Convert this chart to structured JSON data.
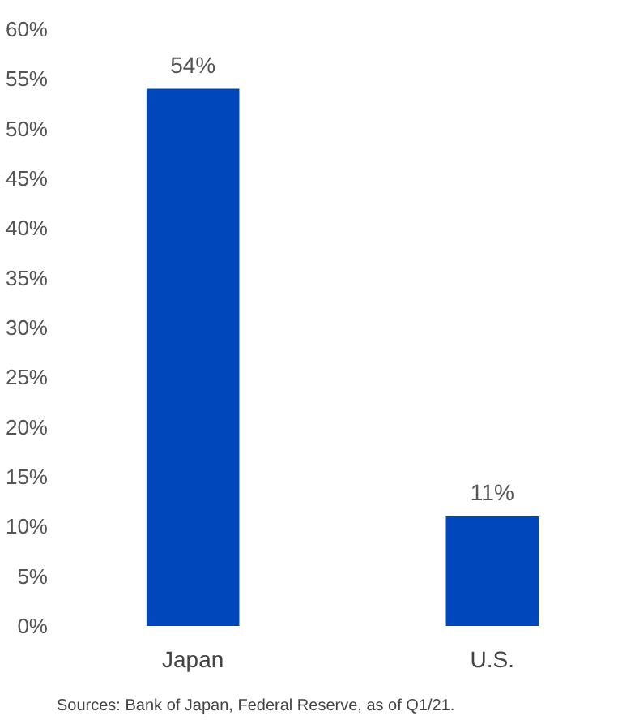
{
  "chart_data": {
    "type": "bar",
    "categories": [
      "Japan",
      "U.S."
    ],
    "values": [
      54,
      11
    ],
    "color": "#0047bb",
    "value_labels": [
      "54%",
      "11%"
    ],
    "ylim": [
      0,
      60
    ],
    "yticks": [
      {
        "value": 0,
        "label": "0%"
      },
      {
        "value": 5,
        "label": "5%"
      },
      {
        "value": 10,
        "label": "10%"
      },
      {
        "value": 15,
        "label": "15%"
      },
      {
        "value": 20,
        "label": "20%"
      },
      {
        "value": 25,
        "label": "25%"
      },
      {
        "value": 30,
        "label": "30%"
      },
      {
        "value": 35,
        "label": "35%"
      },
      {
        "value": 40,
        "label": "40%"
      },
      {
        "value": 45,
        "label": "45%"
      },
      {
        "value": 50,
        "label": "50%"
      },
      {
        "value": 55,
        "label": "55%"
      },
      {
        "value": 60,
        "label": "60%"
      }
    ],
    "grid": false,
    "annotations": [
      "Sources: Bank of Japan, Federal Reserve, as of Q1/21."
    ]
  }
}
